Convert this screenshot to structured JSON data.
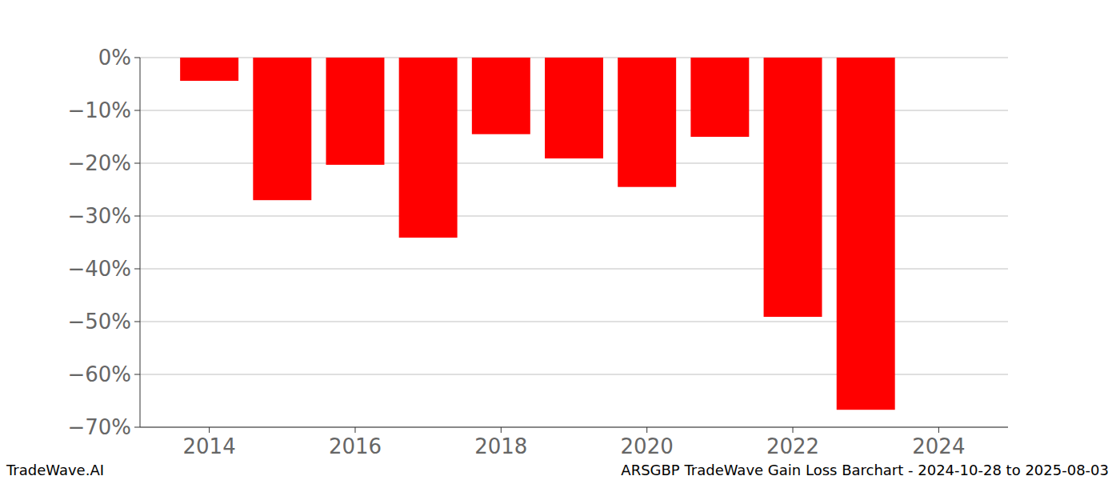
{
  "chart_data": {
    "type": "bar",
    "title": "ARSGBP TradeWave Gain Loss Barchart - 2024-10-28 to 2025-08-03",
    "annotations": [
      "TradeWave.AI"
    ],
    "x": [
      2014,
      2015,
      2016,
      2017,
      2018,
      2019,
      2020,
      2021,
      2022,
      2023
    ],
    "values": [
      -4.4,
      -27.0,
      -20.3,
      -34.1,
      -14.5,
      -19.1,
      -24.5,
      -15.0,
      -49.1,
      -66.7
    ],
    "color": "#ff0000",
    "xlim": [
      2013.05,
      2024.95
    ],
    "xticks": [
      2014,
      2016,
      2018,
      2020,
      2022,
      2024
    ],
    "ylim": [
      -70,
      0
    ],
    "yticks": [
      {
        "value": 0,
        "label": "0%"
      },
      {
        "value": -10,
        "label": "−10%"
      },
      {
        "value": -20,
        "label": "−20%"
      },
      {
        "value": -30,
        "label": "−30%"
      },
      {
        "value": -40,
        "label": "−40%"
      },
      {
        "value": -50,
        "label": "−50%"
      },
      {
        "value": -60,
        "label": "−60%"
      },
      {
        "value": -70,
        "label": "−70%"
      }
    ],
    "grid": true
  }
}
